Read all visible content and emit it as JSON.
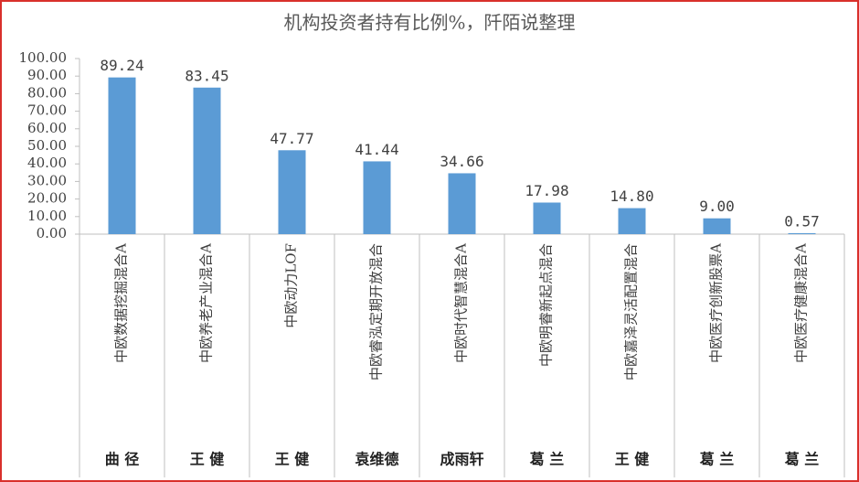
{
  "chart_data": {
    "type": "bar",
    "title": "机构投资者持有比例%，阡陌说整理",
    "categories": [
      "中欧数据挖掘混合A",
      "中欧养老产业混合A",
      "中欧动力LOF",
      "中欧睿泓定期开放混合",
      "中欧时代智慧混合A",
      "中欧明睿新起点混合",
      "中欧嘉泽灵活配置混合",
      "中欧医疗创新股票A",
      "中欧医疗健康混合A"
    ],
    "groups": [
      "曲 径",
      "王 健",
      "王 健",
      "袁维德",
      "成雨轩",
      "葛 兰",
      "王 健",
      "葛 兰",
      "葛 兰"
    ],
    "values": [
      89.24,
      83.45,
      47.77,
      41.44,
      34.66,
      17.98,
      14.8,
      9.0,
      0.57
    ],
    "value_labels": [
      "89.24",
      "83.45",
      "47.77",
      "41.44",
      "34.66",
      "17.98",
      "14.80",
      "9.00",
      "0.57"
    ],
    "color": "#5b9bd5",
    "ylim": [
      0,
      100
    ],
    "yticks": [
      {
        "value": 0,
        "label": "0.00"
      },
      {
        "value": 10,
        "label": "10.00"
      },
      {
        "value": 20,
        "label": "20.00"
      },
      {
        "value": 30,
        "label": "30.00"
      },
      {
        "value": 40,
        "label": "40.00"
      },
      {
        "value": 50,
        "label": "50.00"
      },
      {
        "value": 60,
        "label": "60.00"
      },
      {
        "value": 70,
        "label": "70.00"
      },
      {
        "value": 80,
        "label": "80.00"
      },
      {
        "value": 90,
        "label": "90.00"
      },
      {
        "value": 100,
        "label": "100.00"
      }
    ],
    "grid": false
  }
}
